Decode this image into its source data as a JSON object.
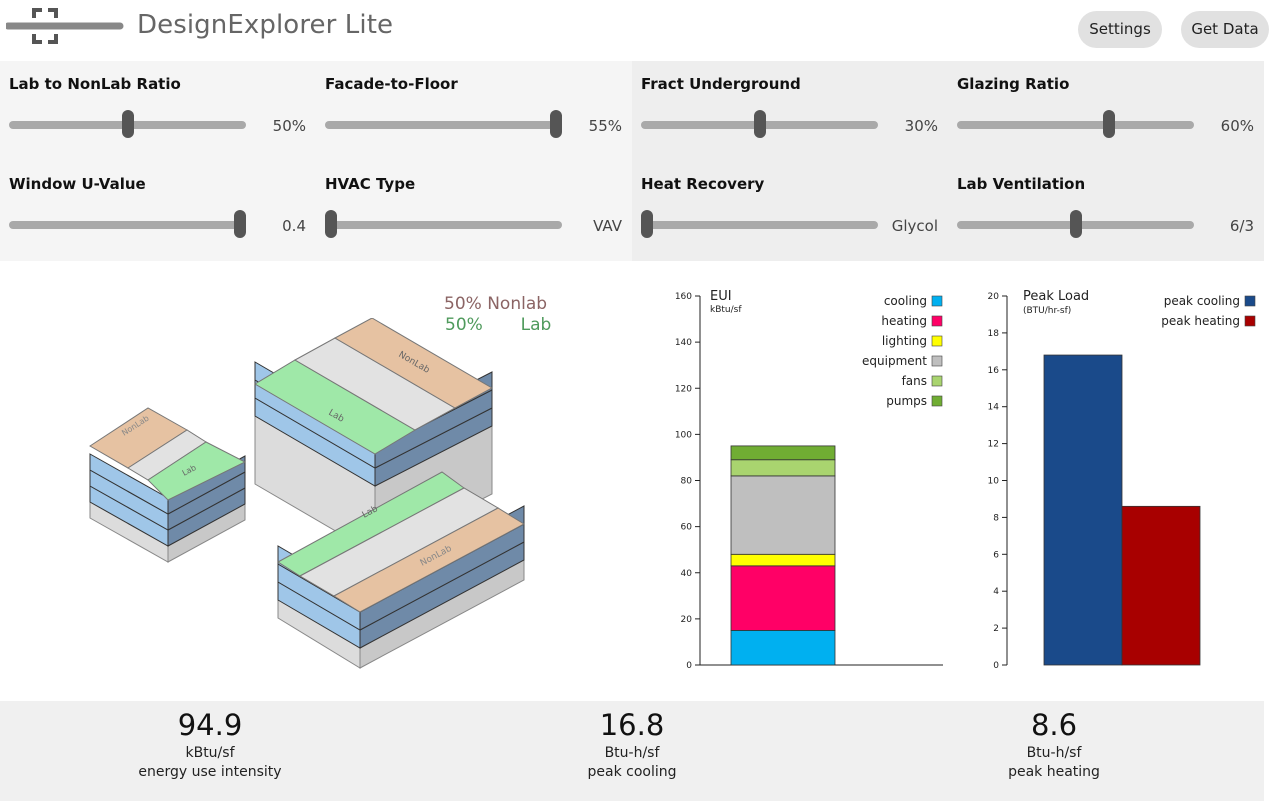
{
  "header": {
    "app_title": "DesignExplorer Lite",
    "settings_label": "Settings",
    "get_data_label": "Get Data"
  },
  "sliders": [
    {
      "label": "Lab to NonLab Ratio",
      "value": "50%",
      "position": 0.5
    },
    {
      "label": "Facade-to-Floor",
      "value": "55%",
      "position": 1.0
    },
    {
      "label": "Fract Underground",
      "value": "30%",
      "position": 0.5
    },
    {
      "label": "Glazing Ratio",
      "value": "60%",
      "position": 0.65
    },
    {
      "label": "Window U-Value",
      "value": "0.4",
      "position": 1.0
    },
    {
      "label": "HVAC Type",
      "value": "VAV",
      "position": 0.0
    },
    {
      "label": "Heat Recovery",
      "value": "Glycol",
      "position": 0.0
    },
    {
      "label": "Lab Ventilation",
      "value": "6/3",
      "position": 0.5
    }
  ],
  "building": {
    "nonlab_pct": "50%",
    "nonlab_label": "Nonlab",
    "lab_pct": "50%",
    "lab_label": "Lab",
    "roof_nonlab_text": "NonLab",
    "roof_lab_text": "Lab"
  },
  "colors": {
    "cooling": "#00b0f0",
    "heating": "#ff0066",
    "lighting": "#ffff00",
    "equipment": "#bfbfbf",
    "fans": "#a9d46f",
    "pumps": "#70ad33",
    "peak_cooling": "#1a4a8a",
    "peak_heating": "#a80000"
  },
  "chart_data": [
    {
      "type": "bar",
      "stacked": true,
      "title": "EUI",
      "subtitle": "kBtu/sf",
      "ylim": [
        0,
        160
      ],
      "yticks": [
        "0",
        "20",
        "40",
        "60",
        "80",
        "100",
        "120",
        "140",
        "160"
      ],
      "series": [
        {
          "name": "cooling",
          "values": [
            15
          ]
        },
        {
          "name": "heating",
          "values": [
            28
          ]
        },
        {
          "name": "lighting",
          "values": [
            5
          ]
        },
        {
          "name": "equipment",
          "values": [
            34
          ]
        },
        {
          "name": "fans",
          "values": [
            7
          ]
        },
        {
          "name": "pumps",
          "values": [
            6
          ]
        }
      ],
      "legend": [
        "cooling",
        "heating",
        "lighting",
        "equipment",
        "fans",
        "pumps"
      ],
      "legend_position": "top-right"
    },
    {
      "type": "bar",
      "title": "Peak Load",
      "subtitle": "(BTU/hr-sf)",
      "ylim": [
        0,
        20
      ],
      "yticks": [
        "0",
        "2",
        "4",
        "6",
        "8",
        "10",
        "12",
        "14",
        "16",
        "18",
        "20"
      ],
      "series": [
        {
          "name": "peak cooling",
          "values": [
            16.8
          ]
        },
        {
          "name": "peak heating",
          "values": [
            8.6
          ]
        }
      ],
      "legend": [
        "peak cooling",
        "peak heating"
      ],
      "legend_position": "top-right"
    }
  ],
  "summary": [
    {
      "value": "94.9",
      "unit": "kBtu/sf",
      "desc": "energy use intensity"
    },
    {
      "value": "16.8",
      "unit": "Btu-h/sf",
      "desc": "peak cooling"
    },
    {
      "value": "8.6",
      "unit": "Btu-h/sf",
      "desc": "peak heating"
    }
  ]
}
